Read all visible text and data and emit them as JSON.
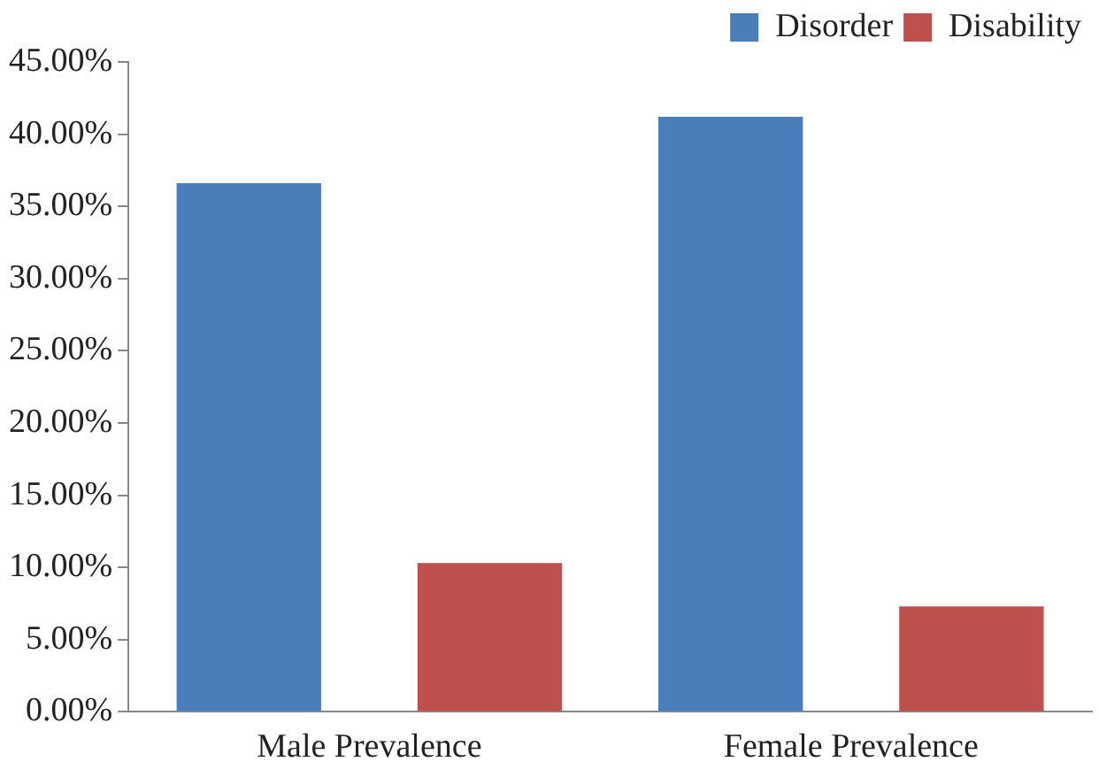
{
  "chart_data": {
    "type": "bar",
    "categories": [
      "Male Prevalence",
      "Female Prevalence"
    ],
    "series": [
      {
        "name": "Disorder",
        "color": "#4a7ebb",
        "values": [
          36.6,
          41.2
        ]
      },
      {
        "name": "Disability",
        "color": "#c0504d",
        "values": [
          10.3,
          7.3
        ]
      }
    ],
    "ylim": [
      0,
      45
    ],
    "yticks": [
      {
        "value": 0,
        "label": "0.00%"
      },
      {
        "value": 5,
        "label": "5.00%"
      },
      {
        "value": 10,
        "label": "10.00%"
      },
      {
        "value": 15,
        "label": "15.00%"
      },
      {
        "value": 20,
        "label": "20.00%"
      },
      {
        "value": 25,
        "label": "25.00%"
      },
      {
        "value": 30,
        "label": "30.00%"
      },
      {
        "value": 35,
        "label": "35.00%"
      },
      {
        "value": 40,
        "label": "40.00%"
      },
      {
        "value": 45,
        "label": "45.00%"
      }
    ],
    "grid": false,
    "legend": "top right"
  }
}
